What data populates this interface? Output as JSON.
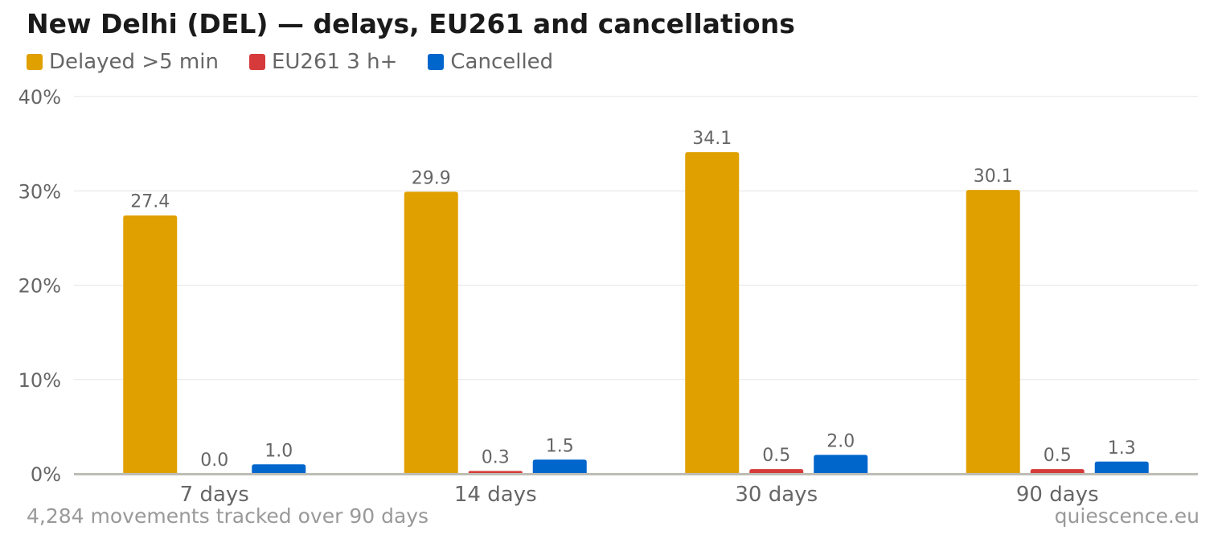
{
  "footer": {
    "note": "4,284 movements tracked over 90 days",
    "source": "quiescence.eu"
  },
  "chart_data": {
    "type": "bar",
    "title": "New Delhi (DEL) — delays, EU261 and cancellations",
    "xlabel": "",
    "ylabel": "",
    "categories": [
      "7 days",
      "14 days",
      "30 days",
      "90 days"
    ],
    "series": [
      {
        "name": "Delayed >5 min",
        "color": "#e0a000",
        "values": [
          27.4,
          29.9,
          34.1,
          30.1
        ],
        "labels": [
          "27.4",
          "29.9",
          "34.1",
          "30.1"
        ]
      },
      {
        "name": "EU261 3 h+",
        "color": "#d63a3a",
        "values": [
          0.0,
          0.3,
          0.5,
          0.5
        ],
        "labels": [
          "0.0",
          "0.3",
          "0.5",
          "0.5"
        ]
      },
      {
        "name": "Cancelled",
        "color": "#0066cc",
        "values": [
          1.0,
          1.5,
          2.0,
          1.3
        ],
        "labels": [
          "1.0",
          "1.5",
          "2.0",
          "1.3"
        ]
      }
    ],
    "ylim": [
      0,
      40
    ],
    "yticks": [
      0,
      10,
      20,
      30,
      40
    ],
    "ytick_labels": [
      "0%",
      "10%",
      "20%",
      "30%",
      "40%"
    ],
    "grid": true,
    "legend": "top-left"
  }
}
